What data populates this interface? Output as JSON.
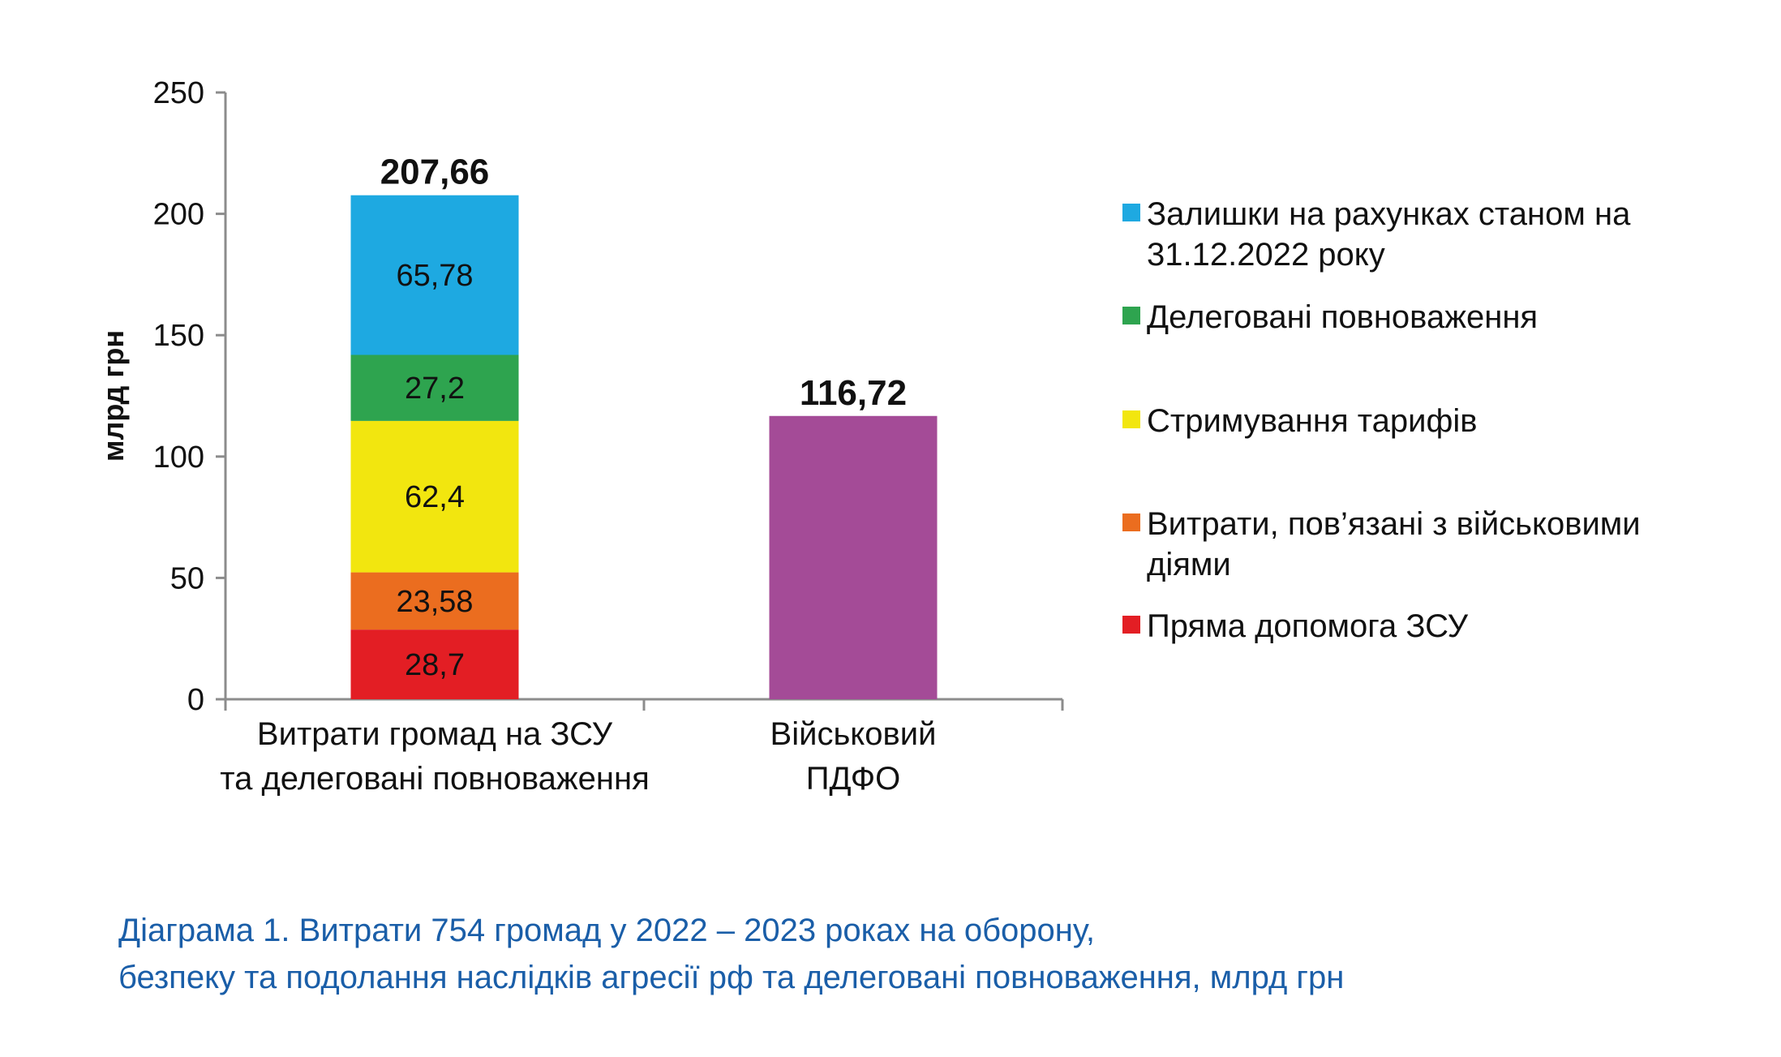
{
  "chart_data": {
    "type": "bar",
    "stacked": true,
    "ylabel": "млрд грн",
    "ylim": [
      0,
      250
    ],
    "yticks": [
      0,
      50,
      100,
      150,
      200,
      250
    ],
    "grid": false,
    "legend_position": "right",
    "categories": [
      [
        "Витрати громад на ЗСУ",
        "та делеговані повноваження"
      ],
      [
        "Військовий",
        "ПДФО"
      ]
    ],
    "series": [
      {
        "name": "Пряма допомога ЗСУ",
        "color": "#e31e24",
        "values": [
          28.7,
          null
        ],
        "labels": [
          "28,7",
          ""
        ]
      },
      {
        "name": "Витрати, пов’язані з військовими діями",
        "legend_lines": [
          "Витрати, пов’язані з військовими",
          "діями"
        ],
        "color": "#eb6d1f",
        "values": [
          23.58,
          null
        ],
        "labels": [
          "23,58",
          ""
        ]
      },
      {
        "name": "Стримування тарифів",
        "legend_lines": [
          "Стримування тарифів"
        ],
        "color": "#f2e60f",
        "values": [
          62.4,
          null
        ],
        "labels": [
          "62,4",
          ""
        ]
      },
      {
        "name": "Делеговані повноваження",
        "legend_lines": [
          "Делеговані повноваження"
        ],
        "color": "#2ea44f",
        "values": [
          27.2,
          null
        ],
        "labels": [
          "27,2",
          ""
        ]
      },
      {
        "name": "Залишки на рахунках станом на 31.12.2022 року",
        "legend_lines": [
          "Залишки на рахунках станом на",
          "31.12.2022 року"
        ],
        "color": "#1ea9e1",
        "values": [
          65.78,
          null
        ],
        "labels": [
          "65,78",
          ""
        ]
      },
      {
        "name": "",
        "color": "#a44b97",
        "values": [
          null,
          116.72
        ],
        "labels": [
          "",
          ""
        ]
      }
    ],
    "totals": [
      207.66,
      116.72
    ],
    "total_labels": [
      "207,66",
      "116,72"
    ],
    "legend_order": [
      4,
      3,
      2,
      1,
      0
    ]
  },
  "caption": {
    "line1": "Діаграма 1.  Витрати 754 громад у 2022 – 2023 роках на оборону,",
    "line2": "безпеку та подолання наслідків агресії рф та делеговані повноваження, млрд грн"
  }
}
